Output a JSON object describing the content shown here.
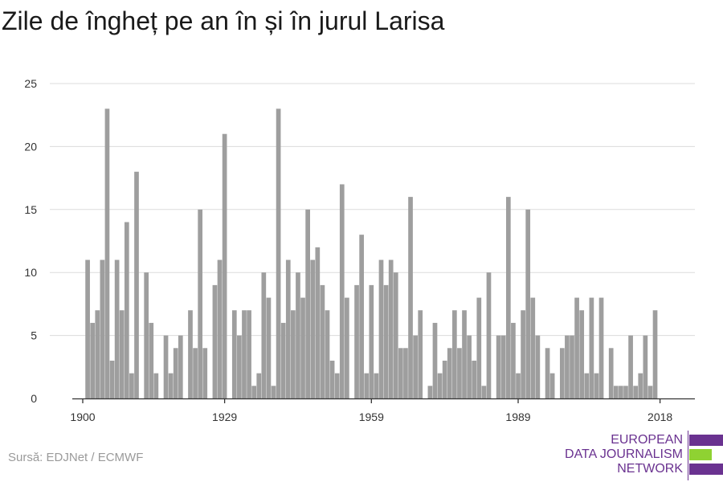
{
  "title": "Zile de îngheț pe an în și în jurul Larisa",
  "source": "Sursă: EDJNet / ECMWF",
  "logo": {
    "line1": "EUROPEAN",
    "line2": "DATA JOURNALISM",
    "line3": "NETWORK",
    "colors": {
      "purple": "#6a3290",
      "green": "#8fd232"
    }
  },
  "colors": {
    "bar": "#9e9e9e",
    "grid": "#dcdcdc",
    "axis": "#333333",
    "tick_text": "#333333"
  },
  "chart_data": {
    "type": "bar",
    "title": "Zile de îngheț pe an în și în jurul Larisa",
    "xlabel": "",
    "ylabel": "",
    "x_start": 1900,
    "x_end": 2018,
    "x_ticks": [
      1900,
      1929,
      1959,
      1989,
      2018
    ],
    "y_ticks": [
      0,
      5,
      10,
      15,
      20,
      25
    ],
    "ylim": [
      0,
      25
    ],
    "grid": true,
    "values": [
      0,
      11,
      6,
      7,
      11,
      23,
      3,
      11,
      7,
      14,
      2,
      18,
      0,
      10,
      6,
      2,
      0,
      5,
      2,
      4,
      5,
      0,
      7,
      4,
      15,
      4,
      0,
      9,
      11,
      21,
      0,
      7,
      5,
      7,
      7,
      1,
      2,
      10,
      8,
      1,
      23,
      6,
      11,
      7,
      10,
      8,
      15,
      11,
      12,
      9,
      7,
      3,
      2,
      17,
      8,
      0,
      9,
      13,
      2,
      9,
      2,
      11,
      9,
      11,
      10,
      4,
      4,
      16,
      5,
      7,
      0,
      1,
      6,
      2,
      3,
      4,
      7,
      4,
      7,
      5,
      3,
      8,
      1,
      10,
      0,
      5,
      5,
      16,
      6,
      2,
      7,
      15,
      8,
      5,
      0,
      4,
      2,
      0,
      4,
      5,
      5,
      8,
      7,
      2,
      8,
      2,
      8,
      0,
      4,
      1,
      1,
      1,
      5,
      1,
      2,
      5,
      1,
      7,
      0
    ]
  }
}
